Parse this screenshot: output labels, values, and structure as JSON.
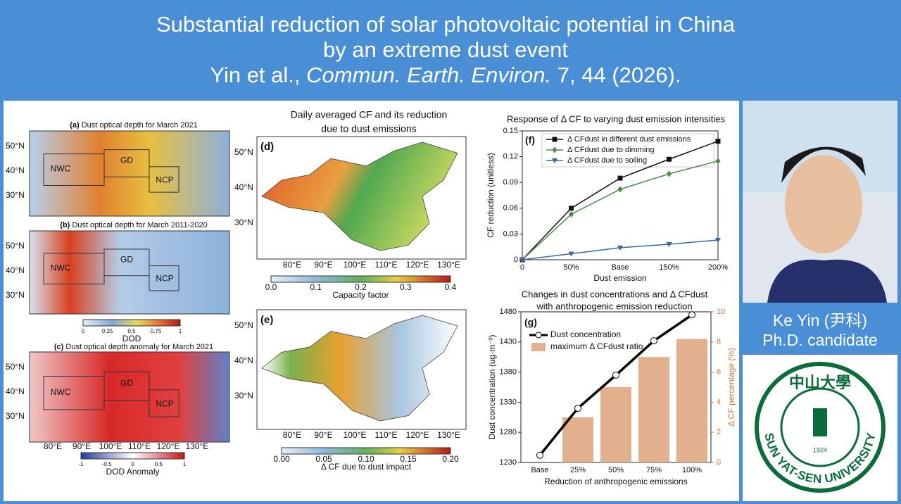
{
  "header": {
    "title_lines": [
      "Substantial reduction of solar photovoltaic potential in China",
      "by an extreme dust event"
    ],
    "citation": {
      "authors": "Yin et al., ",
      "journal": "Commun. Earth. Environ.",
      "volume": " 7, 44 (2026)."
    }
  },
  "left_maps": {
    "panels": [
      {
        "label": "(a)",
        "title": " Dust optical depth for March 2021",
        "lat_labels": [
          "50°N",
          "40°N",
          "30°N"
        ],
        "regions": [
          "NWC",
          "GD",
          "NCP"
        ]
      },
      {
        "label": "(b)",
        "title": " Dust optical depth for March 2011-2020",
        "lat_labels": [
          "50°N",
          "40°N",
          "30°N"
        ],
        "regions": [
          "NWC",
          "GD",
          "NCP"
        ]
      },
      {
        "label": "(c)",
        "title": " Dust optical depth anomaly for March 2021",
        "lat_labels": [
          "50°N",
          "40°N",
          "30°N"
        ],
        "regions": [
          "NWC",
          "GD",
          "NCP"
        ],
        "lon_labels": [
          "80°E",
          "90°E",
          "100°E",
          "110°E",
          "120°E",
          "130°E"
        ]
      }
    ],
    "dod_colorbar": {
      "ticks": [
        "0",
        "0.25",
        "0.5",
        "0.75",
        "1"
      ],
      "label": "DOD"
    },
    "anomaly_colorbar": {
      "ticks": [
        "-1",
        "-0.5",
        "0",
        "0.5",
        "1"
      ],
      "label": "DOD Anomaly"
    }
  },
  "center_maps": {
    "title_lines": [
      "Daily averaged CF and its reduction",
      "due to dust emissions"
    ],
    "panels": [
      {
        "label": "(d)",
        "lat_labels": [
          "50°N",
          "40°N",
          "30°N"
        ],
        "lon_labels": [
          "80°E",
          "90°E",
          "100°E",
          "110°E",
          "120°E",
          "130°E"
        ],
        "colorbar": {
          "ticks": [
            "0.0",
            "0.1",
            "0.2",
            "0.3",
            "0.4"
          ],
          "label": "Capacity factor"
        }
      },
      {
        "label": "(e)",
        "lat_labels": [
          "50°N",
          "40°N",
          "30°N"
        ],
        "lon_labels": [
          "80°E",
          "90°E",
          "100°E",
          "110°E",
          "120°E",
          "130°E"
        ],
        "colorbar": {
          "ticks": [
            "0.00",
            "0.05",
            "0.10",
            "0.15",
            "0.20"
          ],
          "label": "Δ CF due to dust impact"
        }
      }
    ]
  },
  "chart_data": [
    {
      "type": "line",
      "title": "Response of  Δ CF to varying dust emission intensities",
      "panel_label": "(f)",
      "categories": [
        "0",
        "50%",
        "Base",
        "150%",
        "200%"
      ],
      "x_label": "Dust emission",
      "y_label": "CF reduction (unitless)",
      "ylim": [
        0,
        0.15
      ],
      "yticks": [
        0,
        0.03,
        0.06,
        0.09,
        0.12,
        0.15
      ],
      "series": [
        {
          "name": "Δ CFdust in different dust emissions",
          "color": "#111111",
          "marker": "square",
          "values": [
            0,
            0.06,
            0.095,
            0.117,
            0.138
          ]
        },
        {
          "name": "Δ CFdust due to dimming",
          "color": "#4a8a4a",
          "marker": "diamond",
          "values": [
            0,
            0.053,
            0.082,
            0.1,
            0.115
          ]
        },
        {
          "name": "Δ CFdust due to soiling",
          "color": "#3b66a8",
          "marker": "triangle",
          "values": [
            0,
            0.007,
            0.014,
            0.018,
            0.023
          ]
        }
      ]
    },
    {
      "type": "bar_line",
      "title_lines": [
        "Changes in dust concentrations and Δ CFdust",
        "with anthropogenic emission reduction"
      ],
      "panel_label": "(g)",
      "categories": [
        "Base",
        "25%",
        "50%",
        "75%",
        "100%"
      ],
      "x_label": "Reduction of anthropogenic emissions",
      "y_label": "Dust concentration (ug·m⁻³)",
      "y2_label": "Δ CF percentage (%)",
      "ylim": [
        1230,
        1480
      ],
      "yticks": [
        1230,
        1280,
        1330,
        1380,
        1430,
        1480
      ],
      "y2lim": [
        0,
        10
      ],
      "y2ticks": [
        0,
        2,
        4,
        6,
        8,
        10
      ],
      "series": [
        {
          "name": "Dust concentration",
          "color": "#000000",
          "kind": "line",
          "values": [
            1242,
            1320,
            1375,
            1432,
            1475
          ]
        },
        {
          "name": "maximum Δ CFdust ratio",
          "color": "#e3b08e",
          "kind": "bar",
          "axis": "y2",
          "values": [
            null,
            3,
            5,
            7,
            8.2
          ]
        }
      ]
    }
  ],
  "profile": {
    "name": "Ke Yin (尹科)",
    "role": "Ph.D. candidate",
    "logo_text": "SUN YAT-SEN UNIVERSITY",
    "logo_chars": "中山大學",
    "logo_year": "1924"
  }
}
